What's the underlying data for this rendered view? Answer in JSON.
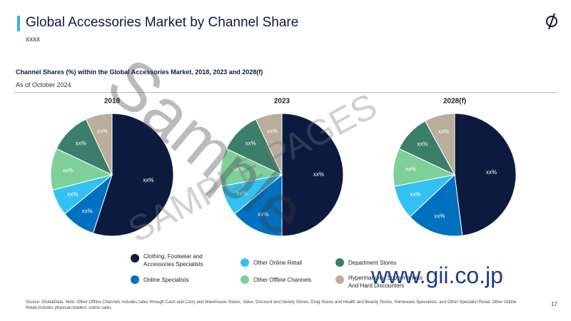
{
  "header": {
    "title": "Global Accessories Market by Channel Share",
    "subtitle": "xxxx"
  },
  "chart_heading": "Channel Shares (%) within the Global Accessories Market, 2018, 2023 and 2028(f)",
  "as_of": "As of October 2024",
  "chart_data": [
    {
      "type": "pie",
      "title": "2018",
      "categories": [
        "Clothing, Footwear and Accessories Specialists",
        "Online Specialists",
        "Other Online Retail",
        "Other Offline Channels",
        "Department Stores",
        "Hypermarkets, Supermarkets And Hard Discounters"
      ],
      "colors": [
        "#0d1a40",
        "#0070c0",
        "#33c1f2",
        "#7fcf9b",
        "#3b7f6b",
        "#b9ad9b"
      ],
      "values": [
        55,
        9,
        7,
        11,
        11,
        7
      ],
      "value_labels": [
        "xx%",
        "xx%",
        "xx%",
        "xx%",
        "xx%",
        "xx%"
      ]
    },
    {
      "type": "pie",
      "title": "2023",
      "categories": [
        "Clothing, Footwear and Accessories Specialists",
        "Online Specialists",
        "Other Online Retail",
        "Other Offline Channels",
        "Department Stores",
        "Hypermarkets, Supermarkets And Hard Discounters"
      ],
      "colors": [
        "#0d1a40",
        "#0070c0",
        "#33c1f2",
        "#7fcf9b",
        "#3b7f6b",
        "#b9ad9b"
      ],
      "values": [
        50,
        14,
        8,
        10,
        11,
        7
      ],
      "value_labels": [
        "xx%",
        "xx%",
        "xx%",
        "xx%",
        "xx%",
        "xx%"
      ]
    },
    {
      "type": "pie",
      "title": "2028(f)",
      "categories": [
        "Clothing, Footwear and Accessories Specialists",
        "Online Specialists",
        "Other Online Retail",
        "Other Offline Channels",
        "Department Stores",
        "Hypermarkets, Supermarkets And Hard Discounters"
      ],
      "colors": [
        "#0d1a40",
        "#0070c0",
        "#33c1f2",
        "#7fcf9b",
        "#3b7f6b",
        "#b9ad9b"
      ],
      "values": [
        48,
        15,
        9,
        10,
        10,
        8
      ],
      "value_labels": [
        "xx%",
        "xx%",
        "xx%",
        "xx%",
        "xx%",
        "xx%"
      ]
    }
  ],
  "footer": {
    "source": "Source: GlobalData. Note: Other Offline Channels includes sales through Cash and Carry and Warehouse Stores, Value, Discount and Variety Stores, Drug Stores and Health and Beauty Stores, Homeware Specialists, and Other Specialist Retail. Other Online Retail includes physical retailers' online sales",
    "page": "17"
  },
  "watermark": {
    "big": "Sample",
    "pages": "SAMPLE PAGES",
    "url": "www.gii.co.jp"
  }
}
